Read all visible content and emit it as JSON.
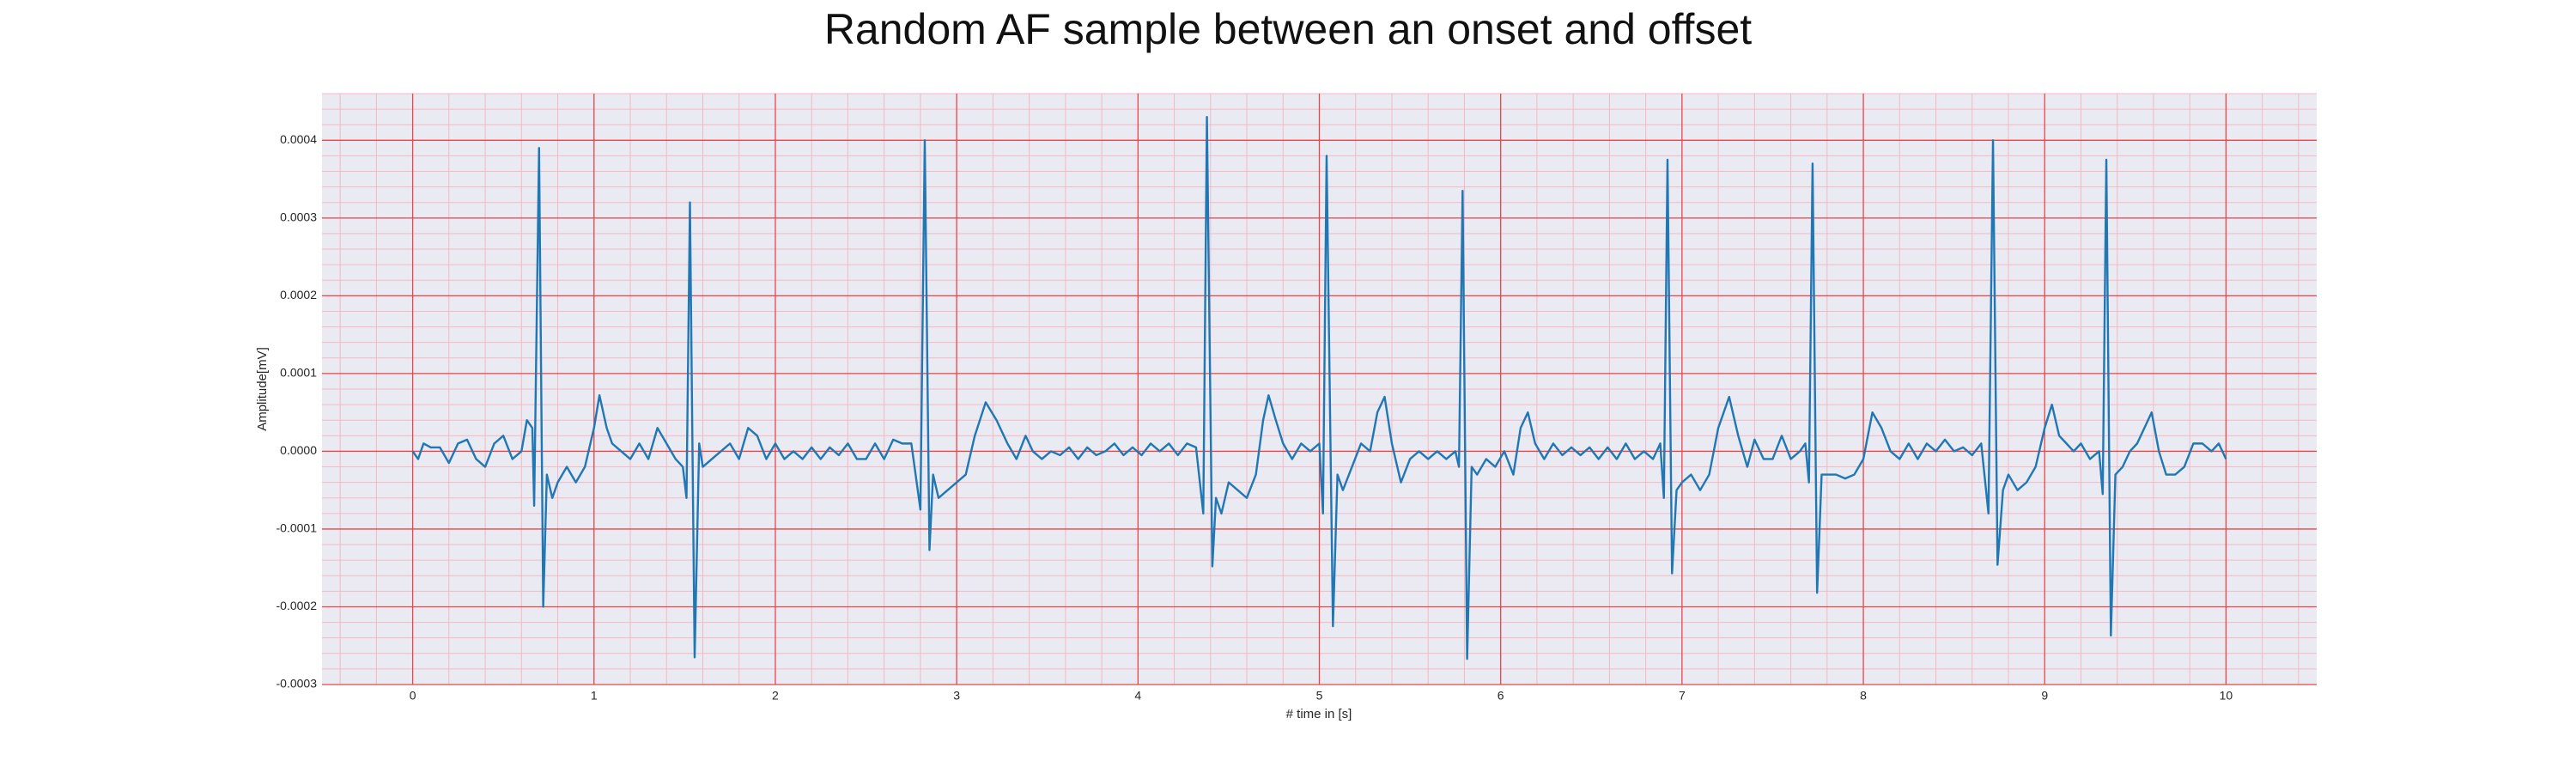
{
  "chart_data": {
    "type": "line",
    "title": "Random AF sample between an onset and offset",
    "xlabel": "# time in [s]",
    "ylabel": "Amplitude[mV]",
    "color": "#1f77b4",
    "background": "#eaeaf2",
    "grid": true,
    "grid_color": "#e8474a",
    "minor_grid": true,
    "minor_grid_color": "#f3b8c4",
    "xlim": [
      -0.5,
      10.5
    ],
    "ylim": [
      -0.0003,
      0.00046
    ],
    "xticks": [
      0,
      1,
      2,
      3,
      4,
      5,
      6,
      7,
      8,
      9,
      10
    ],
    "yticks": [
      {
        "value": -0.0003,
        "label": "-0.0003"
      },
      {
        "value": -0.0002,
        "label": "-0.0002"
      },
      {
        "value": -0.0001,
        "label": "-0.0001"
      },
      {
        "value": 0,
        "label": "0.0000"
      },
      {
        "value": 0.0001,
        "label": "0.0001"
      },
      {
        "value": 0.0002,
        "label": "0.0002"
      },
      {
        "value": 0.0003,
        "label": "0.0003"
      },
      {
        "value": 0.0004,
        "label": "0.0004"
      }
    ],
    "x": [
      0,
      0.03,
      0.06,
      0.1,
      0.15,
      0.2,
      0.25,
      0.3,
      0.35,
      0.4,
      0.45,
      0.5,
      0.55,
      0.6,
      0.63,
      0.66,
      0.67,
      0.697,
      0.72,
      0.74,
      0.77,
      0.8,
      0.85,
      0.9,
      0.95,
      1.0,
      1.03,
      1.07,
      1.1,
      1.15,
      1.2,
      1.25,
      1.3,
      1.35,
      1.4,
      1.45,
      1.49,
      1.51,
      1.529,
      1.555,
      1.58,
      1.6,
      1.65,
      1.7,
      1.75,
      1.8,
      1.85,
      1.9,
      1.95,
      2.0,
      2.05,
      2.1,
      2.15,
      2.2,
      2.25,
      2.3,
      2.35,
      2.4,
      2.45,
      2.5,
      2.55,
      2.6,
      2.65,
      2.7,
      2.75,
      2.8,
      2.824,
      2.85,
      2.87,
      2.9,
      2.95,
      3.0,
      3.05,
      3.1,
      3.16,
      3.22,
      3.28,
      3.33,
      3.38,
      3.42,
      3.47,
      3.52,
      3.57,
      3.62,
      3.67,
      3.72,
      3.77,
      3.82,
      3.87,
      3.92,
      3.97,
      4.02,
      4.07,
      4.12,
      4.17,
      4.22,
      4.27,
      4.32,
      4.36,
      4.38,
      4.41,
      4.43,
      4.46,
      4.5,
      4.55,
      4.6,
      4.65,
      4.69,
      4.72,
      4.76,
      4.8,
      4.85,
      4.9,
      4.95,
      5.0,
      5.02,
      5.04,
      5.075,
      5.1,
      5.13,
      5.18,
      5.23,
      5.28,
      5.32,
      5.36,
      5.4,
      5.45,
      5.5,
      5.55,
      5.6,
      5.65,
      5.7,
      5.75,
      5.77,
      5.79,
      5.815,
      5.84,
      5.87,
      5.92,
      5.97,
      6.02,
      6.07,
      6.11,
      6.15,
      6.19,
      6.24,
      6.29,
      6.34,
      6.39,
      6.44,
      6.49,
      6.54,
      6.59,
      6.64,
      6.69,
      6.74,
      6.79,
      6.84,
      6.88,
      6.9,
      6.92,
      6.945,
      6.97,
      7.0,
      7.05,
      7.1,
      7.15,
      7.2,
      7.26,
      7.31,
      7.36,
      7.4,
      7.45,
      7.5,
      7.55,
      7.6,
      7.65,
      7.68,
      7.7,
      7.72,
      7.745,
      7.77,
      7.8,
      7.85,
      7.9,
      7.95,
      8.0,
      8.05,
      8.1,
      8.15,
      8.2,
      8.25,
      8.3,
      8.35,
      8.4,
      8.45,
      8.5,
      8.55,
      8.6,
      8.65,
      8.69,
      8.715,
      8.74,
      8.77,
      8.8,
      8.85,
      8.9,
      8.95,
      9.0,
      9.04,
      9.08,
      9.12,
      9.16,
      9.2,
      9.25,
      9.3,
      9.32,
      9.34,
      9.365,
      9.39,
      9.43,
      9.47,
      9.51,
      9.55,
      9.59,
      9.63,
      9.67,
      9.72,
      9.77,
      9.82,
      9.87,
      9.92,
      9.96,
      10.0
    ],
    "values": [
      0,
      -1e-05,
      1e-05,
      5e-06,
      5e-06,
      -1.5e-05,
      1e-05,
      1.5e-05,
      -1e-05,
      -2e-05,
      1e-05,
      2e-05,
      -1e-05,
      0,
      4e-05,
      3e-05,
      -7e-05,
      0.00039,
      -0.0002,
      -3e-05,
      -6e-05,
      -4e-05,
      -2e-05,
      -4e-05,
      -2e-05,
      3e-05,
      7.2e-05,
      3e-05,
      1e-05,
      0,
      -1e-05,
      1e-05,
      -1e-05,
      3e-05,
      1e-05,
      -1e-05,
      -2e-05,
      -6e-05,
      0.00032,
      -0.000265,
      1e-05,
      -2e-05,
      -1e-05,
      0,
      1e-05,
      -1e-05,
      3e-05,
      2e-05,
      -1e-05,
      1e-05,
      -1e-05,
      0,
      -1e-05,
      5e-06,
      -1e-05,
      5e-06,
      -5e-06,
      1e-05,
      -1e-05,
      -1e-05,
      1e-05,
      -1e-05,
      1.5e-05,
      1e-05,
      1e-05,
      -7.5e-05,
      0.0004,
      -0.000127,
      -3e-05,
      -6e-05,
      -5e-05,
      -4e-05,
      -3e-05,
      2e-05,
      6.3e-05,
      4e-05,
      1e-05,
      -1e-05,
      2e-05,
      0,
      -1e-05,
      0,
      -5e-06,
      5e-06,
      -1e-05,
      5e-06,
      -5e-06,
      0,
      1e-05,
      -5e-06,
      5e-06,
      -5e-06,
      1e-05,
      0,
      1e-05,
      -5e-06,
      1e-05,
      5e-06,
      -8e-05,
      0.00043,
      -0.000148,
      -6e-05,
      -8e-05,
      -4e-05,
      -5e-05,
      -6e-05,
      -3e-05,
      4e-05,
      7.2e-05,
      4e-05,
      1e-05,
      -1e-05,
      1e-05,
      0,
      1e-05,
      -8e-05,
      0.00038,
      -0.000225,
      -3e-05,
      -5e-05,
      -2e-05,
      1e-05,
      0,
      5e-05,
      7e-05,
      1e-05,
      -4e-05,
      -1e-05,
      0,
      -1e-05,
      0,
      -1e-05,
      0,
      -2e-05,
      0.000335,
      -0.000267,
      -2e-05,
      -3e-05,
      -1e-05,
      -2e-05,
      0,
      -3e-05,
      3e-05,
      5e-05,
      1e-05,
      -1e-05,
      1e-05,
      -5e-06,
      5e-06,
      -5e-06,
      5e-06,
      -1e-05,
      5e-06,
      -1e-05,
      1e-05,
      -1e-05,
      0,
      -1e-05,
      1e-05,
      -6e-05,
      0.000375,
      -0.000157,
      -5e-05,
      -4e-05,
      -3e-05,
      -5e-05,
      -3e-05,
      3e-05,
      7e-05,
      2e-05,
      -2e-05,
      1.5e-05,
      -1e-05,
      -1e-05,
      2e-05,
      -1e-05,
      0,
      1e-05,
      -4e-05,
      0.00037,
      -0.000182,
      -3e-05,
      -3e-05,
      -3e-05,
      -3.5e-05,
      -3e-05,
      -1e-05,
      5e-05,
      3e-05,
      0,
      -1e-05,
      1e-05,
      -1e-05,
      1e-05,
      0,
      1.5e-05,
      0,
      5e-06,
      -5e-06,
      1e-05,
      -8e-05,
      0.0004,
      -0.000146,
      -5e-05,
      -3e-05,
      -5e-05,
      -4e-05,
      -2e-05,
      3e-05,
      6e-05,
      2e-05,
      1e-05,
      0,
      1e-05,
      -1e-05,
      0,
      -5.5e-05,
      0.000375,
      -0.000237,
      -3e-05,
      -2e-05,
      0,
      1e-05,
      3e-05,
      5e-05,
      0,
      -3e-05,
      -3e-05,
      -2e-05,
      1e-05,
      1e-05,
      0,
      1e-05,
      -1e-05
    ]
  }
}
